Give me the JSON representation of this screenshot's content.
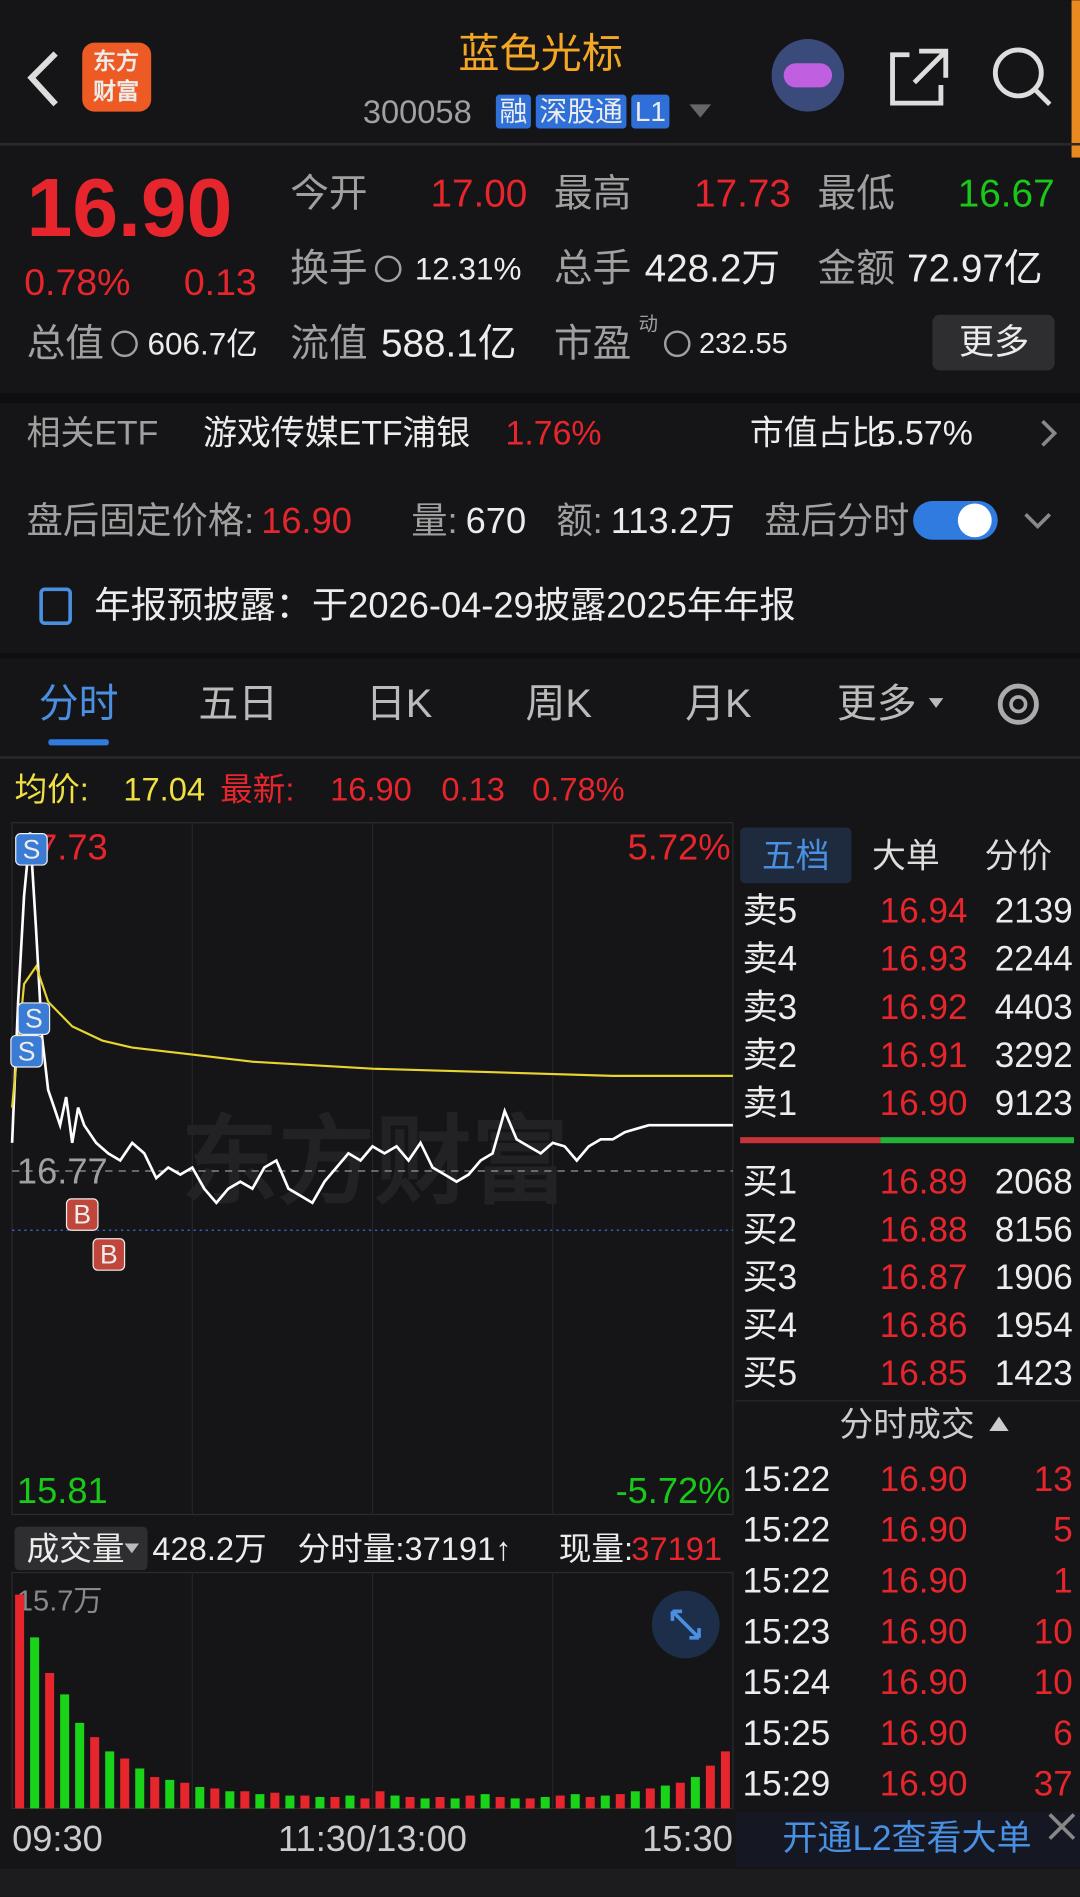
{
  "header": {
    "logo": [
      "东方",
      "财富"
    ],
    "title": "蓝色光标",
    "code": "300058",
    "tags": [
      "融",
      "深股通",
      "L1"
    ]
  },
  "quote": {
    "price": "16.90",
    "pct": "0.78%",
    "change": "0.13",
    "more": "更多",
    "pe_sup": "动",
    "fields": [
      {
        "label": "今开",
        "value": "17.00"
      },
      {
        "label": "最高",
        "value": "17.73"
      },
      {
        "label": "最低",
        "value": "16.67"
      },
      {
        "label": "换手",
        "value": "12.31%"
      },
      {
        "label": "总手",
        "value": "428.2万"
      },
      {
        "label": "金额",
        "value": "72.97亿"
      },
      {
        "label": "总值",
        "value": "606.7亿"
      },
      {
        "label": "流值",
        "value": "588.1亿"
      },
      {
        "label": "市盈",
        "value": "232.55"
      }
    ]
  },
  "etf": {
    "label": "相关ETF",
    "name": "游戏传媒ETF浦银",
    "pct": "1.76%",
    "share_label": "市值占比",
    "share": "5.57%"
  },
  "after_hours": {
    "label": "盘后固定价格:",
    "price": "16.90",
    "vol_label": "量:",
    "vol": "670",
    "amt_label": "额:",
    "amt": "113.2万",
    "toggle": "盘后分时"
  },
  "notice": "年报预披露：于2026-04-29披露2025年年报",
  "tabs": [
    "分时",
    "五日",
    "日K",
    "周K",
    "月K",
    "更多"
  ],
  "summary": {
    "avg_label": "均价:",
    "avg": "17.04",
    "latest_label": "最新:",
    "latest": "16.90",
    "change": "0.13",
    "pct": "0.78%"
  },
  "watermark": "东方财富",
  "trade_markers": [
    "S",
    "S",
    "S",
    "B",
    "B"
  ],
  "chart_data": [
    {
      "type": "line",
      "xlim": [
        0,
        240
      ],
      "xticks": [
        {
          "value": 0,
          "label": "09:30"
        },
        {
          "value": 120,
          "label": "11:30/13:00"
        },
        {
          "value": 240,
          "label": "15:30"
        }
      ],
      "ylim": [
        15.81,
        17.73
      ],
      "yticks": [
        15.81,
        16.77,
        17.73
      ],
      "y2lim": [
        -5.72,
        5.72
      ],
      "y2ticks": [
        {
          "value": 5.72,
          "label": "5.72%"
        },
        {
          "value": -5.72,
          "label": "-5.72%"
        }
      ],
      "x": [
        0,
        2,
        4,
        6,
        8,
        10,
        12,
        14,
        16,
        18,
        20,
        22,
        24,
        28,
        32,
        36,
        40,
        44,
        48,
        52,
        56,
        60,
        64,
        68,
        72,
        76,
        80,
        84,
        88,
        92,
        96,
        100,
        104,
        108,
        112,
        116,
        120,
        124,
        128,
        132,
        136,
        140,
        144,
        148,
        152,
        156,
        160,
        164,
        168,
        172,
        176,
        180,
        184,
        188,
        192,
        196,
        200,
        204,
        208,
        212,
        216,
        220,
        224,
        228,
        232,
        236,
        240
      ],
      "series": [
        {
          "color": "#ffffff",
          "values": [
            16.85,
            17.25,
            17.55,
            17.73,
            17.45,
            17.15,
            17.0,
            16.95,
            16.9,
            16.98,
            16.85,
            16.95,
            16.9,
            16.85,
            16.82,
            16.8,
            16.85,
            16.82,
            16.75,
            16.78,
            16.76,
            16.78,
            16.72,
            16.68,
            16.72,
            16.74,
            16.72,
            16.78,
            16.8,
            16.72,
            16.7,
            16.68,
            16.74,
            16.78,
            16.82,
            16.8,
            16.84,
            16.82,
            16.84,
            16.8,
            16.85,
            16.78,
            16.76,
            16.74,
            16.76,
            16.8,
            16.82,
            16.94,
            16.86,
            16.84,
            16.82,
            16.85,
            16.84,
            16.8,
            16.84,
            16.86,
            16.86,
            16.88,
            16.89,
            16.9,
            16.9,
            16.9,
            16.9,
            16.9,
            16.9,
            16.9,
            16.9
          ]
        },
        {
          "color": "#e8d431",
          "x": [
            0,
            4,
            8,
            12,
            20,
            30,
            40,
            60,
            80,
            100,
            120,
            160,
            200,
            240
          ],
          "values": [
            16.95,
            17.3,
            17.35,
            17.25,
            17.18,
            17.14,
            17.12,
            17.1,
            17.08,
            17.07,
            17.06,
            17.05,
            17.04,
            17.04
          ]
        }
      ]
    },
    {
      "type": "bar",
      "xlim": [
        0,
        240
      ],
      "ylim": [
        0,
        157000
      ],
      "yticks": [
        {
          "value": 157000,
          "label": "15.7万"
        }
      ],
      "x": [
        2.5,
        7.5,
        12.5,
        17.5,
        22.5,
        27.5,
        32.5,
        37.5,
        42.5,
        47.5,
        52.5,
        57.5,
        62.5,
        67.5,
        72.5,
        77.5,
        82.5,
        87.5,
        92.5,
        97.5,
        102.5,
        107.5,
        112.5,
        117.5,
        122.5,
        127.5,
        132.5,
        137.5,
        142.5,
        147.5,
        152.5,
        157.5,
        162.5,
        167.5,
        172.5,
        177.5,
        182.5,
        187.5,
        192.5,
        197.5,
        202.5,
        207.5,
        212.5,
        217.5,
        222.5,
        227.5,
        232.5,
        237.5
      ],
      "series": [
        {
          "color": "#e6262c",
          "values": [
            150000,
            null,
            95000,
            null,
            null,
            50000,
            null,
            35000,
            null,
            22000,
            null,
            18000,
            null,
            14000,
            null,
            12000,
            null,
            11000,
            null,
            9000,
            null,
            8000,
            null,
            7000,
            12000,
            null,
            8000,
            null,
            8000,
            null,
            9000,
            null,
            8000,
            null,
            7000,
            null,
            9000,
            null,
            8000,
            null,
            10000,
            null,
            14000,
            null,
            18000,
            null,
            30000,
            40000
          ]
        },
        {
          "color": "#19d419",
          "values": [
            null,
            120000,
            null,
            80000,
            60000,
            null,
            40000,
            null,
            28000,
            null,
            20000,
            null,
            15000,
            null,
            12000,
            null,
            10000,
            null,
            9000,
            null,
            8000,
            null,
            9000,
            null,
            null,
            9000,
            null,
            7000,
            null,
            7000,
            null,
            10000,
            null,
            7000,
            null,
            8000,
            null,
            10000,
            null,
            9000,
            null,
            12000,
            null,
            16000,
            null,
            22000,
            null,
            null
          ]
        }
      ]
    }
  ],
  "volume": {
    "label": "成交量",
    "total": "428.2万",
    "period": "分时量:37191↑",
    "current_label": "现量:",
    "current": "37191"
  },
  "order_book": {
    "tabs": [
      "五档",
      "大单",
      "分价"
    ],
    "asks": [
      [
        "卖5",
        "16.94",
        "2139"
      ],
      [
        "卖4",
        "16.93",
        "2244"
      ],
      [
        "卖3",
        "16.92",
        "4403"
      ],
      [
        "卖2",
        "16.91",
        "3292"
      ],
      [
        "卖1",
        "16.90",
        "9123"
      ]
    ],
    "bids": [
      [
        "买1",
        "16.89",
        "2068"
      ],
      [
        "买2",
        "16.88",
        "8156"
      ],
      [
        "买3",
        "16.87",
        "1906"
      ],
      [
        "买4",
        "16.86",
        "1954"
      ],
      [
        "买5",
        "16.85",
        "1423"
      ]
    ]
  },
  "trades": {
    "title": "分时成交",
    "rows": [
      [
        "15:22",
        "16.90",
        "13"
      ],
      [
        "15:22",
        "16.90",
        "5"
      ],
      [
        "15:22",
        "16.90",
        "1"
      ],
      [
        "15:23",
        "16.90",
        "10"
      ],
      [
        "15:24",
        "16.90",
        "10"
      ],
      [
        "15:25",
        "16.90",
        "6"
      ],
      [
        "15:29",
        "16.90",
        "37"
      ]
    ]
  },
  "l2": "开通L2查看大单"
}
